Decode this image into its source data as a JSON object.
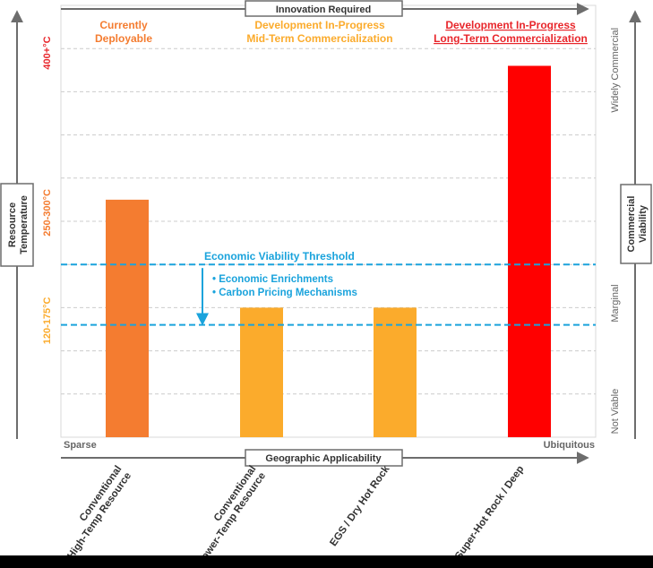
{
  "chart_data": {
    "type": "bar",
    "categories": [
      {
        "line1": "Conventional",
        "line2": "High-Temp Resource"
      },
      {
        "line1": "Conventional",
        "line2": "Lower-Temp Resource"
      },
      {
        "line1": "EGS / Dry Hot Rock",
        "line2": ""
      },
      {
        "line1": "Super-Hot Rock / Deep",
        "line2": ""
      }
    ],
    "values": [
      5.5,
      3.0,
      3.0,
      8.6
    ],
    "bar_colors": [
      "#f47c30",
      "#fbab2c",
      "#fbab2c",
      "#ff0000"
    ],
    "ylim": [
      0,
      10
    ],
    "gridlines": [
      1,
      2,
      3,
      4,
      5,
      6,
      7,
      8,
      9
    ],
    "threshold_upper": 4.0,
    "threshold_lower": 2.6,
    "threshold_color": "#1aa3dc",
    "threshold_label": "Economic Viability Threshold",
    "threshold_bullets": [
      "• Economic Enrichments",
      "• Carbon Pricing Mechanisms"
    ],
    "top_axis_label": "Innovation Required",
    "bottom_axis_label": "Geographic Applicability",
    "x_start_label": "Sparse",
    "x_end_label": "Ubiquitous",
    "left_axis_title": [
      "Resource",
      "Temperature"
    ],
    "right_axis_title": [
      "Commercial",
      "Viability"
    ],
    "temp_ticks": [
      {
        "label": "400+°C",
        "y": 8.9,
        "color": "#e8262b"
      },
      {
        "label": "250-300°C",
        "y": 5.2,
        "color": "#f47c30"
      },
      {
        "label": "120-175°C",
        "y": 2.7,
        "color": "#fbab2c"
      }
    ],
    "viability_ticks": [
      {
        "label": "Widely Commercial",
        "y": 8.5
      },
      {
        "label": "Marginal",
        "y": 3.1
      },
      {
        "label": "Not Viable",
        "y": 0.6
      }
    ],
    "headers": [
      {
        "lines": [
          "Currently",
          "Deployable"
        ],
        "color": "#f47c30",
        "underline": false
      },
      {
        "lines": [
          "Development In-Progress",
          "Mid-Term Commercialization"
        ],
        "color": "#fbab2c",
        "underline": false
      },
      {
        "lines": [
          "Development In-Progress",
          "Long-Term Commercialization"
        ],
        "color": "#e8262b",
        "underline": true
      }
    ]
  }
}
